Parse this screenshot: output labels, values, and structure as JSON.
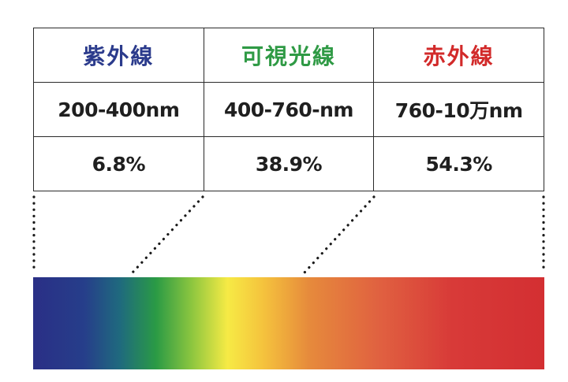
{
  "bands": [
    {
      "name": "紫外線",
      "range": "200-400nm",
      "share": "6.8%",
      "color": "#2b3b8c"
    },
    {
      "name": "可視光線",
      "range": "400-760-nm",
      "share": "38.9%",
      "color": "#2f9a45"
    },
    {
      "name": "赤外線",
      "range": "760-10万nm",
      "share": "54.3%",
      "color": "#d22a2a"
    }
  ],
  "spectrum": {
    "gradient_stops": [
      {
        "offset": 0.0,
        "color": "#2a2f86"
      },
      {
        "offset": 0.1,
        "color": "#263e8a"
      },
      {
        "offset": 0.17,
        "color": "#1f6a7e"
      },
      {
        "offset": 0.24,
        "color": "#2a9a45"
      },
      {
        "offset": 0.31,
        "color": "#8cc63f"
      },
      {
        "offset": 0.38,
        "color": "#f6ea45"
      },
      {
        "offset": 0.45,
        "color": "#f5c33d"
      },
      {
        "offset": 0.54,
        "color": "#e68a3c"
      },
      {
        "offset": 0.68,
        "color": "#e06040"
      },
      {
        "offset": 0.82,
        "color": "#d83a38"
      },
      {
        "offset": 1.0,
        "color": "#d32f32"
      }
    ]
  }
}
